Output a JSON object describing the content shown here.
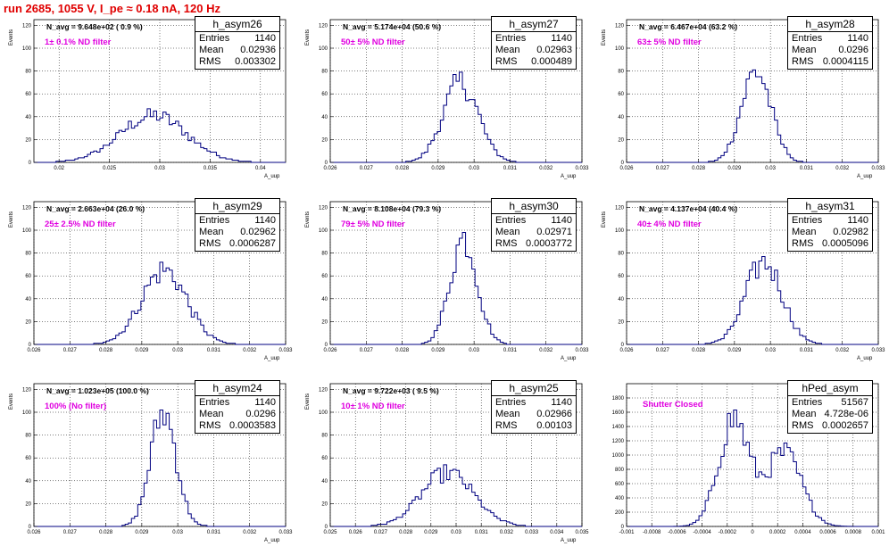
{
  "page": {
    "title": "run 2685,  1055 V, I_pe ≈ 0.18 nA, 120 Hz"
  },
  "chart_data": [
    {
      "type": "histogram",
      "name": "h_asym26",
      "xlim": [
        0.0175,
        0.0425
      ],
      "ylim": [
        0,
        125
      ],
      "xticks": [
        0.02,
        0.025,
        0.03,
        0.035,
        0.04
      ],
      "xtick_labels": [
        "0.02",
        "0.025",
        "0.03",
        "0.035",
        "0.04"
      ],
      "yticks": [
        0,
        20,
        40,
        60,
        80,
        100,
        120
      ],
      "ytick_labels": [
        "0",
        "20",
        "40",
        "60",
        "80",
        "100",
        "120"
      ],
      "xlabel": "A_uup",
      "ylabel": "Events",
      "stats": {
        "entries": "1140",
        "mean": "0.02936",
        "rms": "0.003302"
      },
      "navg": "N_avg = 9.648e+02 ( 0.9 %)",
      "filter": "1± 0.1% ND filter",
      "mean": 0.02936,
      "rms": 0.003302,
      "peak": 41
    },
    {
      "type": "histogram",
      "name": "h_asym27",
      "xlim": [
        0.026,
        0.033
      ],
      "ylim": [
        0,
        125
      ],
      "xticks": [
        0.026,
        0.027,
        0.028,
        0.029,
        0.03,
        0.031,
        0.032,
        0.033
      ],
      "xtick_labels": [
        "0.026",
        "0.027",
        "0.028",
        "0.029",
        "0.03",
        "0.031",
        "0.032",
        "0.033"
      ],
      "yticks": [
        0,
        20,
        40,
        60,
        80,
        100,
        120
      ],
      "ytick_labels": [
        "0",
        "20",
        "40",
        "60",
        "80",
        "100",
        "120"
      ],
      "xlabel": "A_uup",
      "ylabel": "Events",
      "stats": {
        "entries": "1140",
        "mean": "0.02963",
        "rms": "0.000489"
      },
      "navg": "N_avg = 5.174e+04 (50.6 %)",
      "filter": "50± 5% ND filter",
      "mean": 0.02963,
      "rms": 0.000489,
      "peak": 70
    },
    {
      "type": "histogram",
      "name": "h_asym28",
      "xlim": [
        0.026,
        0.033
      ],
      "ylim": [
        0,
        125
      ],
      "xticks": [
        0.026,
        0.027,
        0.028,
        0.029,
        0.03,
        0.031,
        0.032,
        0.033
      ],
      "xtick_labels": [
        "0.026",
        "0.027",
        "0.028",
        "0.029",
        "0.03",
        "0.031",
        "0.032",
        "0.033"
      ],
      "yticks": [
        0,
        20,
        40,
        60,
        80,
        100,
        120
      ],
      "ytick_labels": [
        "0",
        "20",
        "40",
        "60",
        "80",
        "100",
        "120"
      ],
      "xlabel": "A_uup",
      "ylabel": "Events",
      "stats": {
        "entries": "1140",
        "mean": "0.0296",
        "rms": "0.0004115"
      },
      "navg": "N_avg = 6.467e+04 (63.2 %)",
      "filter": "63± 5% ND filter",
      "mean": 0.0296,
      "rms": 0.0004115,
      "peak": 80
    },
    {
      "type": "histogram",
      "name": "h_asym29",
      "xlim": [
        0.026,
        0.033
      ],
      "ylim": [
        0,
        125
      ],
      "xticks": [
        0.026,
        0.027,
        0.028,
        0.029,
        0.03,
        0.031,
        0.032,
        0.033
      ],
      "xtick_labels": [
        "0.026",
        "0.027",
        "0.028",
        "0.029",
        "0.03",
        "0.031",
        "0.032",
        "0.033"
      ],
      "yticks": [
        0,
        20,
        40,
        60,
        80,
        100,
        120
      ],
      "ytick_labels": [
        "0",
        "20",
        "40",
        "60",
        "80",
        "100",
        "120"
      ],
      "xlabel": "A_uup",
      "ylabel": "Events",
      "stats": {
        "entries": "1140",
        "mean": "0.02962",
        "rms": "0.0006287"
      },
      "navg": "N_avg = 2.663e+04 (26.0 %)",
      "filter": "25± 2.5% ND filter",
      "mean": 0.02962,
      "rms": 0.0006287,
      "peak": 65
    },
    {
      "type": "histogram",
      "name": "h_asym30",
      "xlim": [
        0.026,
        0.033
      ],
      "ylim": [
        0,
        125
      ],
      "xticks": [
        0.026,
        0.027,
        0.028,
        0.029,
        0.03,
        0.031,
        0.032,
        0.033
      ],
      "xtick_labels": [
        "0.026",
        "0.027",
        "0.028",
        "0.029",
        "0.03",
        "0.031",
        "0.032",
        "0.033"
      ],
      "yticks": [
        0,
        20,
        40,
        60,
        80,
        100,
        120
      ],
      "ytick_labels": [
        "0",
        "20",
        "40",
        "60",
        "80",
        "100",
        "120"
      ],
      "xlabel": "A_uup",
      "ylabel": "Events",
      "stats": {
        "entries": "1140",
        "mean": "0.02971",
        "rms": "0.0003772"
      },
      "navg": "N_avg = 8.108e+04 (79.3 %)",
      "filter": "79± 5% ND filter",
      "mean": 0.02971,
      "rms": 0.0003772,
      "peak": 93
    },
    {
      "type": "histogram",
      "name": "h_asym31",
      "xlim": [
        0.026,
        0.033
      ],
      "ylim": [
        0,
        125
      ],
      "xticks": [
        0.026,
        0.027,
        0.028,
        0.029,
        0.03,
        0.031,
        0.032,
        0.033
      ],
      "xtick_labels": [
        "0.026",
        "0.027",
        "0.028",
        "0.029",
        "0.03",
        "0.031",
        "0.032",
        "0.033"
      ],
      "yticks": [
        0,
        20,
        40,
        60,
        80,
        100,
        120
      ],
      "ytick_labels": [
        "0",
        "20",
        "40",
        "60",
        "80",
        "100",
        "120"
      ],
      "xlabel": "A_uup",
      "ylabel": "Events",
      "stats": {
        "entries": "1140",
        "mean": "0.02982",
        "rms": "0.0005096"
      },
      "navg": "N_avg = 4.137e+04 (40.4 %)",
      "filter": "40± 4% ND filter",
      "mean": 0.02982,
      "rms": 0.0005096,
      "peak": 72
    },
    {
      "type": "histogram",
      "name": "h_asym24",
      "xlim": [
        0.026,
        0.033
      ],
      "ylim": [
        0,
        125
      ],
      "xticks": [
        0.026,
        0.027,
        0.028,
        0.029,
        0.03,
        0.031,
        0.032,
        0.033
      ],
      "xtick_labels": [
        "0.026",
        "0.027",
        "0.028",
        "0.029",
        "0.03",
        "0.031",
        "0.032",
        "0.033"
      ],
      "yticks": [
        0,
        20,
        40,
        60,
        80,
        100,
        120
      ],
      "ytick_labels": [
        "0",
        "20",
        "40",
        "60",
        "80",
        "100",
        "120"
      ],
      "xlabel": "A_uup",
      "ylabel": "Events",
      "stats": {
        "entries": "1140",
        "mean": "0.0296",
        "rms": "0.0003583"
      },
      "navg": "N_avg = 1.023e+05 (100.0 %)",
      "filter": "100% (No filter)",
      "mean": 0.0296,
      "rms": 0.0003583,
      "peak": 100
    },
    {
      "type": "histogram",
      "name": "h_asym25",
      "xlim": [
        0.025,
        0.035
      ],
      "ylim": [
        0,
        125
      ],
      "xticks": [
        0.025,
        0.026,
        0.027,
        0.028,
        0.029,
        0.03,
        0.031,
        0.032,
        0.033,
        0.034,
        0.035
      ],
      "xtick_labels": [
        "0.025",
        "0.026",
        "0.027",
        "0.028",
        "0.029",
        "0.03",
        "0.031",
        "0.032",
        "0.033",
        "0.034",
        "0.035"
      ],
      "yticks": [
        0,
        20,
        40,
        60,
        80,
        100,
        120
      ],
      "ytick_labels": [
        "0",
        "20",
        "40",
        "60",
        "80",
        "100",
        "120"
      ],
      "xlabel": "A_uup",
      "ylabel": "Events",
      "stats": {
        "entries": "1140",
        "mean": "0.02966",
        "rms": "0.00103"
      },
      "navg": "N_avg = 9.722e+03 ( 9.5 %)",
      "filter": "10± 1% ND filter",
      "mean": 0.02966,
      "rms": 0.00103,
      "peak": 47
    },
    {
      "type": "histogram",
      "name": "hPed_asym",
      "xlim": [
        -0.001,
        0.001
      ],
      "ylim": [
        0,
        2000
      ],
      "xticks": [
        -0.001,
        -0.0008,
        -0.0006,
        -0.0004,
        -0.0002,
        0,
        0.0002,
        0.0004,
        0.0006,
        0.0008,
        0.001
      ],
      "xtick_labels": [
        "-0.001",
        "-0.0008",
        "-0.0006",
        "-0.0004",
        "-0.0002",
        "0",
        "0.0002",
        "0.0004",
        "0.0006",
        "0.0008",
        "0.001"
      ],
      "yticks": [
        0,
        200,
        400,
        600,
        800,
        1000,
        1200,
        1400,
        1600,
        1800
      ],
      "ytick_labels": [
        "0",
        "200",
        "400",
        "600",
        "800",
        "1000",
        "1200",
        "1400",
        "1600",
        "1800"
      ],
      "xlabel": "",
      "ylabel": "",
      "stats": {
        "entries": "51567",
        "mean": "4.728e-06",
        "rms": "0.0002657"
      },
      "navg": "",
      "filter": "Shutter Closed",
      "mean": 4.728e-06,
      "rms": 0.0002657,
      "peak": 1850,
      "components": [
        {
          "mu": -0.00015,
          "sigma": 0.00012,
          "amp": 1500
        },
        {
          "mu": 0.00025,
          "sigma": 0.00014,
          "amp": 1020
        }
      ]
    }
  ],
  "colors": {
    "line": "#000080",
    "grid": "#000000",
    "filter": "#e000e0",
    "title": "#e00000"
  },
  "labels": {
    "entries": "Entries",
    "mean": "Mean",
    "rms": "RMS"
  }
}
